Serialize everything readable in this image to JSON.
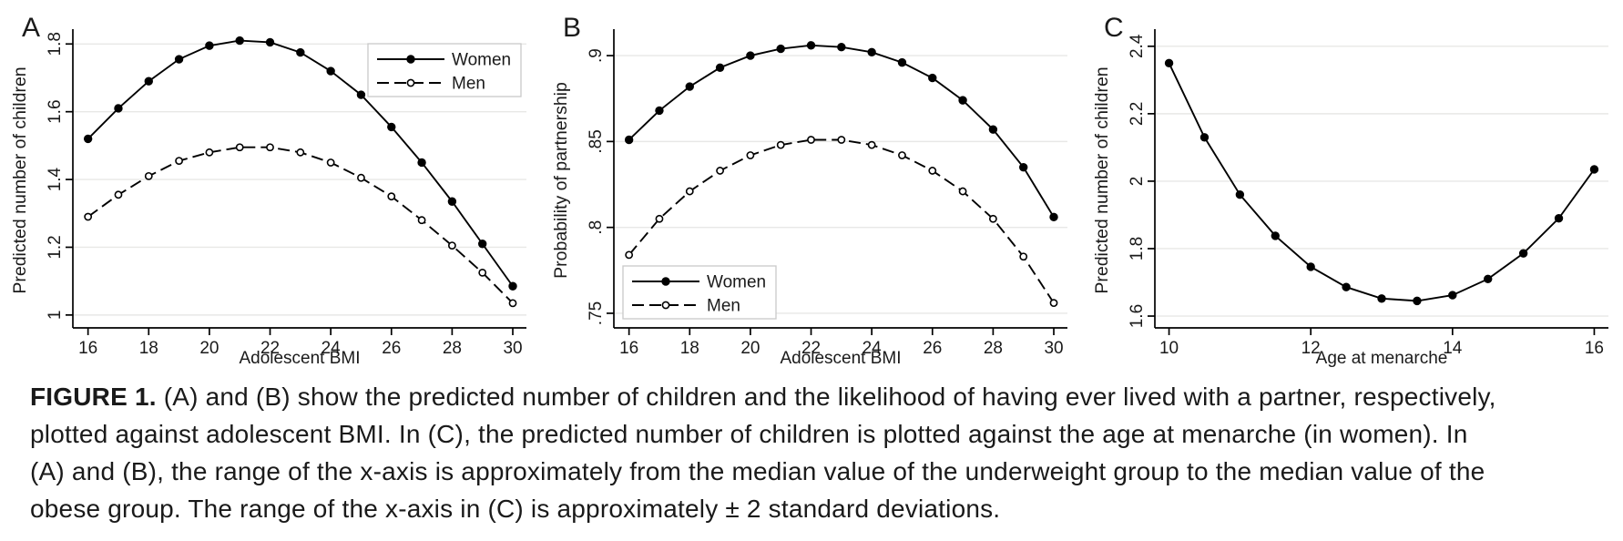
{
  "colors": {
    "line": "#000000",
    "grid": "#e8e8e6",
    "legend_border": "#c9c9c9",
    "text": "#1a1a1a",
    "background": "#ffffff"
  },
  "caption": {
    "label": "FIGURE 1.",
    "lines": [
      "(A) and (B) show the predicted number of children and the likelihood of having ever lived with a partner, respectively,",
      "plotted against adolescent BMI. In (C), the predicted number of children is plotted against the age at menarche (in women). In",
      "(A) and (B), the range of the x-axis is approximately from the median value of the underweight group to the median value of the",
      "obese group. The range of the x-axis in (C) is approximately ± 2 standard deviations."
    ]
  },
  "chart_data": [
    {
      "type": "line",
      "panel_label": "A",
      "xlabel": "Adolescent BMI",
      "ylabel": "Predicted number of children",
      "x": [
        16,
        17,
        18,
        19,
        20,
        21,
        22,
        23,
        24,
        25,
        26,
        27,
        28,
        29,
        30
      ],
      "series": [
        {
          "name": "Women",
          "style": "solid",
          "marker": "filled",
          "values": [
            1.52,
            1.61,
            1.69,
            1.755,
            1.795,
            1.81,
            1.805,
            1.775,
            1.72,
            1.65,
            1.555,
            1.45,
            1.335,
            1.21,
            1.085
          ]
        },
        {
          "name": "Men",
          "style": "dashed",
          "marker": "open",
          "values": [
            1.29,
            1.355,
            1.41,
            1.455,
            1.48,
            1.495,
            1.495,
            1.48,
            1.45,
            1.405,
            1.35,
            1.28,
            1.205,
            1.125,
            1.035
          ]
        }
      ],
      "xticks": [
        16,
        18,
        20,
        22,
        24,
        26,
        28,
        30
      ],
      "xtick_labels": [
        "16",
        "18",
        "20",
        "22",
        "24",
        "26",
        "28",
        "30"
      ],
      "yticks": [
        1,
        1.2,
        1.4,
        1.6,
        1.8
      ],
      "ytick_labels": [
        "1",
        "1.2",
        "1.4",
        "1.6",
        "1.8"
      ],
      "xlim": [
        15.5,
        30.45
      ],
      "ylim": [
        0.962,
        1.833
      ],
      "grid": "horizontal",
      "legend": {
        "position": "top-right",
        "entries": [
          "Women",
          "Men"
        ]
      }
    },
    {
      "type": "line",
      "panel_label": "B",
      "xlabel": "Adolescent BMI",
      "ylabel": "Probability of partnership",
      "x": [
        16,
        17,
        18,
        19,
        20,
        21,
        22,
        23,
        24,
        25,
        26,
        27,
        28,
        29,
        30
      ],
      "series": [
        {
          "name": "Women",
          "style": "solid",
          "marker": "filled",
          "values": [
            0.851,
            0.868,
            0.882,
            0.893,
            0.9,
            0.904,
            0.906,
            0.905,
            0.902,
            0.896,
            0.887,
            0.874,
            0.857,
            0.835,
            0.806
          ]
        },
        {
          "name": "Men",
          "style": "dashed",
          "marker": "open",
          "values": [
            0.784,
            0.805,
            0.821,
            0.833,
            0.842,
            0.848,
            0.851,
            0.851,
            0.848,
            0.842,
            0.833,
            0.821,
            0.805,
            0.783,
            0.756
          ]
        }
      ],
      "xticks": [
        16,
        18,
        20,
        22,
        24,
        26,
        28,
        30
      ],
      "xtick_labels": [
        "16",
        "18",
        "20",
        "22",
        "24",
        "26",
        "28",
        "30"
      ],
      "yticks": [
        0.75,
        0.8,
        0.85,
        0.9
      ],
      "ytick_labels": [
        ".75",
        ".8",
        ".85",
        ".9"
      ],
      "xlim": [
        15.5,
        30.45
      ],
      "ylim": [
        0.7415,
        0.9133
      ],
      "grid": "horizontal",
      "legend": {
        "position": "bottom-left",
        "entries": [
          "Women",
          "Men"
        ]
      }
    },
    {
      "type": "line",
      "panel_label": "C",
      "xlabel": "Age at menarche",
      "ylabel": "Predicted number of children",
      "x": [
        10,
        10.5,
        11,
        11.5,
        12,
        12.5,
        13,
        13.5,
        14,
        14.5,
        15,
        15.5,
        16
      ],
      "series": [
        {
          "name": "",
          "style": "solid",
          "marker": "filled",
          "values": [
            2.35,
            2.13,
            1.96,
            1.838,
            1.746,
            1.686,
            1.652,
            1.645,
            1.662,
            1.71,
            1.786,
            1.89,
            2.035
          ]
        }
      ],
      "xticks": [
        10,
        12,
        14,
        16
      ],
      "xtick_labels": [
        "10",
        "12",
        "14",
        "16"
      ],
      "yticks": [
        1.6,
        1.8,
        2,
        2.2,
        2.4
      ],
      "ytick_labels": [
        "1.6",
        "1.8",
        "2",
        "2.2",
        "2.4"
      ],
      "xlim": [
        9.8,
        16.2
      ],
      "ylim": [
        1.565,
        2.44
      ],
      "grid": "horizontal",
      "legend": null
    }
  ]
}
